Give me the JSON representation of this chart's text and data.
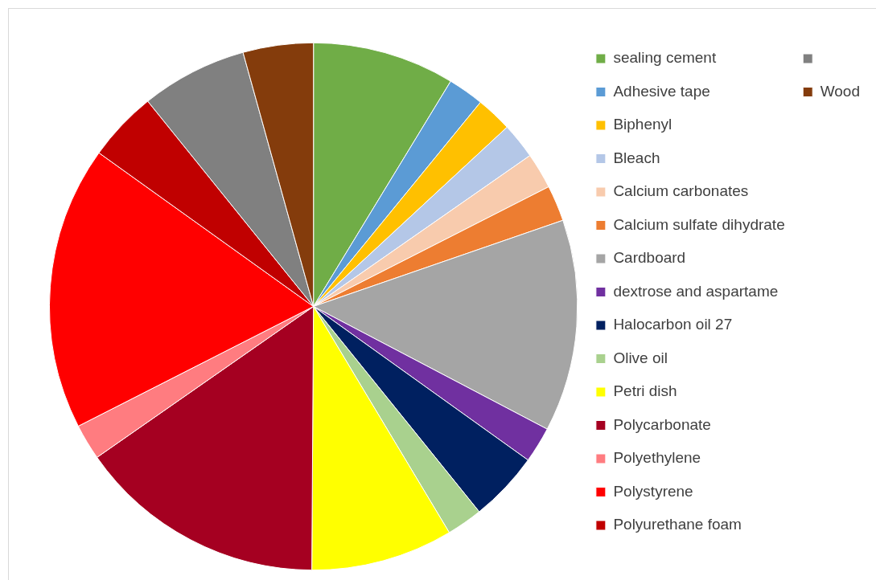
{
  "chart_data": {
    "type": "pie",
    "categories": [
      "sealing cement",
      "Adhesive tape",
      "Biphenyl",
      "Bleach",
      "Calcium carbonates",
      "Calcium sulfate dihydrate",
      "Cardboard",
      "dextrose and aspartame",
      "Halocarbon oil 27",
      "Olive oil",
      "Petri dish",
      "Polycarbonate",
      "Polyethylene",
      "Polystyrene",
      "Polyurethane foam",
      null,
      "Wood"
    ],
    "values": [
      8.7,
      2.2,
      2.2,
      2.2,
      2.2,
      2.2,
      13.0,
      2.2,
      4.3,
      2.2,
      8.7,
      15.2,
      2.2,
      17.4,
      4.3,
      6.5,
      4.3
    ],
    "colors": [
      "#70ad47",
      "#5b9bd5",
      "#ffc000",
      "#b4c7e7",
      "#f8cbad",
      "#ed7d31",
      "#a5a5a5",
      "#7030a0",
      "#002060",
      "#a9d18e",
      "#ffff00",
      "#a50021",
      "#ff7c80",
      "#ff0000",
      "#c00000",
      "#808080",
      "#843c0c"
    ],
    "legend": "right"
  }
}
